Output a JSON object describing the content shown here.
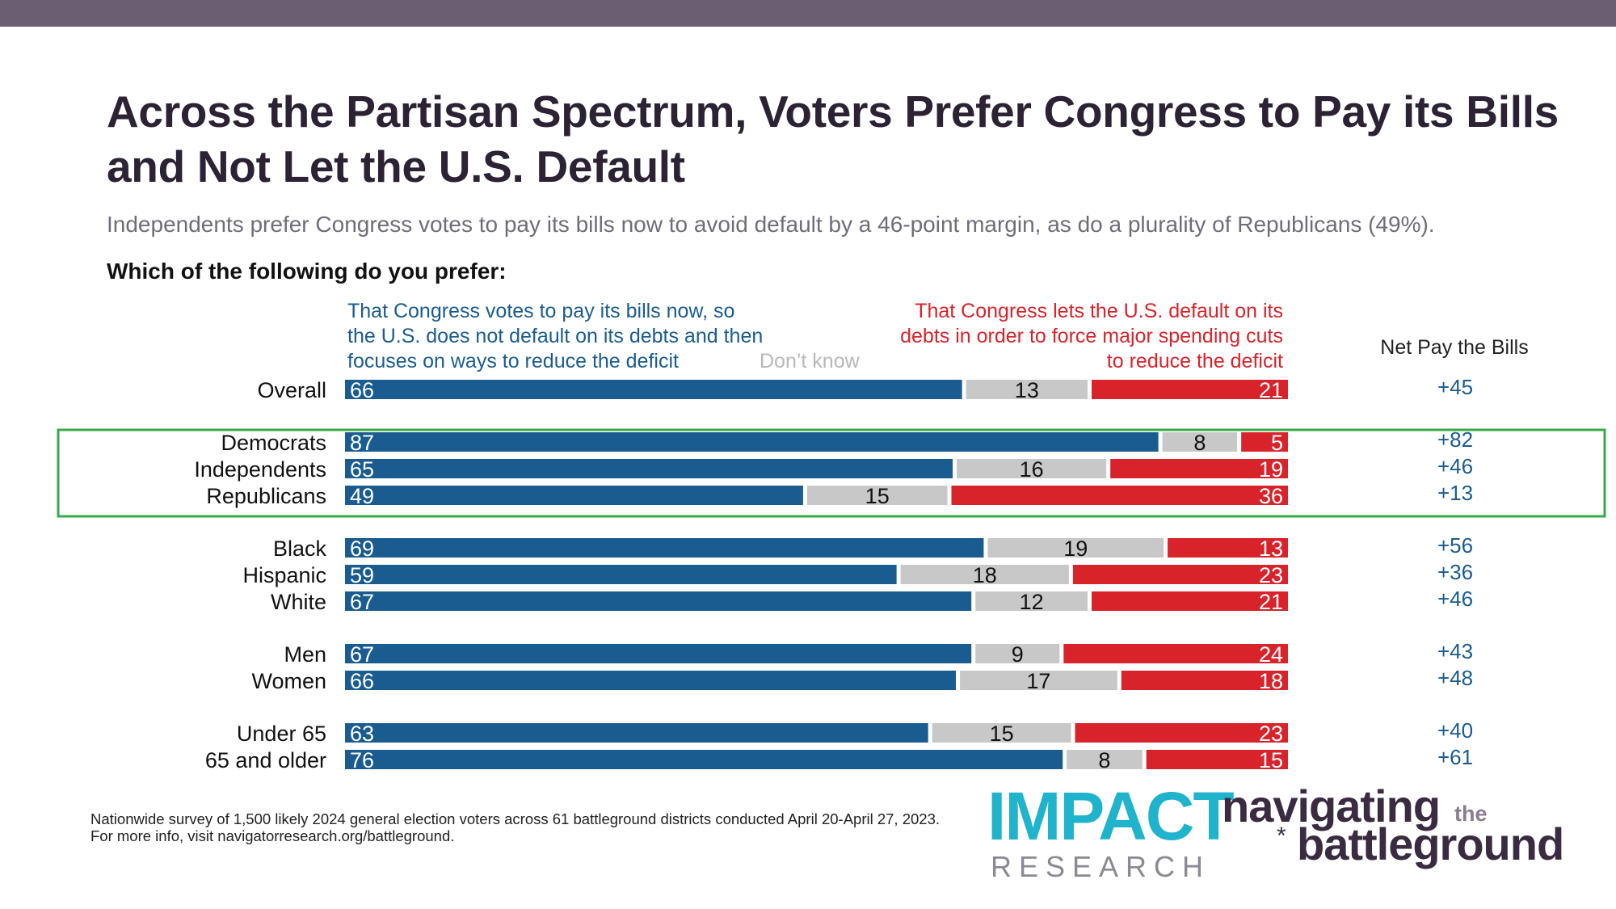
{
  "header": {
    "title": "Across the Partisan Spectrum, Voters Prefer Congress to Pay its Bills and Not Let the U.S. Default",
    "subtitle": "Independents prefer Congress votes to pay its bills now to avoid default by a 46-point margin, as do a plurality of Republicans (49%).",
    "question": "Which of the following do you prefer:"
  },
  "legend": {
    "pay": "That Congress votes to pay its bills now, so the U.S. does not default on its debts and then focuses on ways to reduce the deficit",
    "dont_know": "Don’t know",
    "default": "That Congress lets the U.S. default on its debts in order to force major spending cuts to reduce the deficit",
    "net_header": "Net Pay the Bills"
  },
  "colors": {
    "pay": "#1a5c8f",
    "dont_know": "#c8c8c8",
    "default": "#d9232b",
    "highlight_box": "#3aa84a"
  },
  "chart_data": {
    "type": "bar",
    "orientation": "horizontal-stacked-100",
    "categories": [
      "Overall",
      "Democrats",
      "Independents",
      "Republicans",
      "Black",
      "Hispanic",
      "White",
      "Men",
      "Women",
      "Under 65",
      "65 and older"
    ],
    "groups": [
      [
        "Overall"
      ],
      [
        "Democrats",
        "Independents",
        "Republicans"
      ],
      [
        "Black",
        "Hispanic",
        "White"
      ],
      [
        "Men",
        "Women"
      ],
      [
        "Under 65",
        "65 and older"
      ]
    ],
    "series": [
      {
        "name": "That Congress votes to pay its bills now, so the U.S. does not default on its debts and then focuses on ways to reduce the deficit",
        "values": [
          66,
          87,
          65,
          49,
          69,
          59,
          67,
          67,
          66,
          63,
          76
        ]
      },
      {
        "name": "Don’t know",
        "values": [
          13,
          8,
          16,
          15,
          19,
          18,
          12,
          9,
          17,
          15,
          8
        ]
      },
      {
        "name": "That Congress lets the U.S. default on its debts in order to force major spending cuts to reduce the deficit",
        "values": [
          21,
          5,
          19,
          36,
          13,
          23,
          21,
          24,
          18,
          23,
          15
        ]
      }
    ],
    "net": [
      "+45",
      "+82",
      "+46",
      "+13",
      "+56",
      "+36",
      "+46",
      "+43",
      "+48",
      "+40",
      "+61"
    ],
    "highlighted": [
      "Independents",
      "Republicans"
    ],
    "xlim": [
      0,
      100
    ]
  },
  "footer": {
    "line1": "Nationwide survey of 1,500 likely 2024 general election voters across 61 battleground districts conducted April 20-April 27, 2023.",
    "line2": "For more info, visit navigatorresearch.org/battleground."
  },
  "logos": {
    "impact": "IMPACT",
    "research": "RESEARCH",
    "navigating": "navigating",
    "the": "the",
    "battleground": "battleground"
  }
}
